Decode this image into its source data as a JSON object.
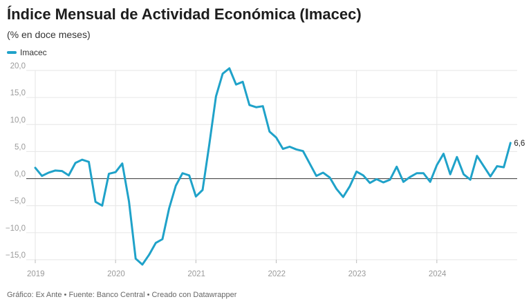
{
  "title": "Índice Mensual de Actividad Económica (Imacec)",
  "subtitle": "(% en doce meses)",
  "footer": "Gráfico: Ex Ante • Fuente: Banco Central • Creado con Datawrapper",
  "colors": {
    "series": "#1fa2c9",
    "grid": "#e6e6e6",
    "zero_line": "#333333"
  },
  "chart_data": {
    "type": "line",
    "series": [
      {
        "name": "Imacec",
        "x_start": "2019-01",
        "frequency": "monthly",
        "values": [
          2.0,
          0.5,
          1.1,
          1.5,
          1.4,
          0.6,
          2.9,
          3.5,
          3.1,
          -4.3,
          -5.0,
          0.9,
          1.2,
          2.8,
          -4.2,
          -14.8,
          -15.9,
          -14.1,
          -11.9,
          -11.2,
          -5.5,
          -1.3,
          1.0,
          0.6,
          -3.3,
          -2.1,
          6.3,
          15.2,
          19.4,
          20.4,
          17.4,
          17.9,
          13.6,
          13.2,
          13.4,
          8.7,
          7.6,
          5.5,
          5.9,
          5.4,
          5.1,
          2.8,
          0.5,
          1.1,
          0.2,
          -1.9,
          -3.4,
          -1.4,
          1.3,
          0.6,
          -0.8,
          -0.1,
          -0.7,
          -0.2,
          2.2,
          -0.6,
          0.3,
          1.0,
          1.0,
          -0.6,
          2.5,
          4.6,
          0.8,
          4.0,
          0.8,
          -0.2,
          4.2,
          2.3,
          0.4,
          2.3,
          2.1,
          6.6
        ]
      }
    ],
    "end_label": "6,6",
    "x_tick_labels": [
      "2019",
      "2020",
      "2021",
      "2022",
      "2023",
      "2024"
    ],
    "y_ticks": [
      20,
      15,
      10,
      5,
      0,
      -5,
      -10,
      -15
    ],
    "y_tick_labels": [
      "20,0",
      "15,0",
      "10,0",
      "5,0",
      "0,0",
      "−5,0",
      "−10,0",
      "−15,0"
    ],
    "ylim": [
      -15.0,
      20.0
    ],
    "grid": true,
    "legend_position": "top-left"
  }
}
